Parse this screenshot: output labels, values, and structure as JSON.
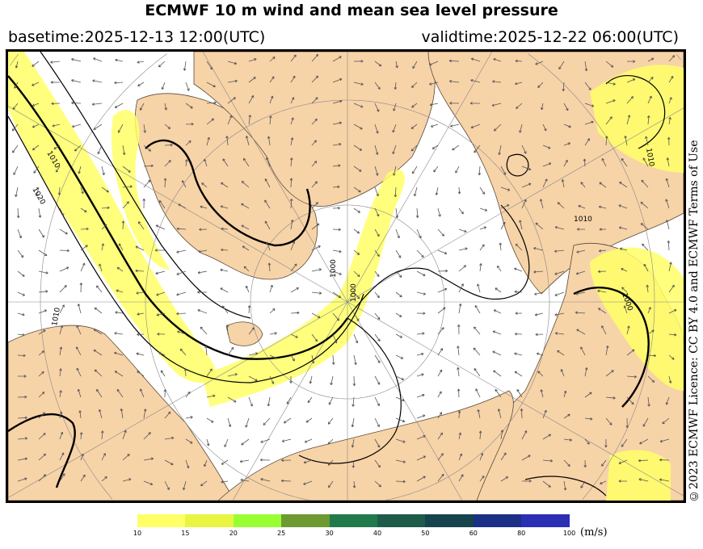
{
  "header": {
    "title": "ECMWF 10 m wind and mean sea level pressure",
    "basetime": "basetime:2025-12-13 12:00(UTC)",
    "validtime": "validtime:2025-12-22 06:00(UTC)"
  },
  "credit": "©2023 ECMWF Licence: CC BY 4.0 and ECMWF Terms of Use",
  "map": {
    "land_color": "#f7d3a8",
    "sea_color": "#ffffff",
    "isobar_color": "#000000",
    "isobar_labels": [
      "1010",
      "1020",
      "1010",
      "1000",
      "1000",
      "1010",
      "1000",
      "1010"
    ]
  },
  "colorbar": {
    "unit": "(m/s)",
    "ticks": [
      "10",
      "15",
      "20",
      "25",
      "30",
      "40",
      "50",
      "60",
      "80",
      "100"
    ],
    "colors": [
      "#ffff66",
      "#e8f542",
      "#99ff33",
      "#6e9a32",
      "#217a4c",
      "#1d5c4a",
      "#17434c",
      "#1c2f86",
      "#2b2fb4"
    ]
  }
}
